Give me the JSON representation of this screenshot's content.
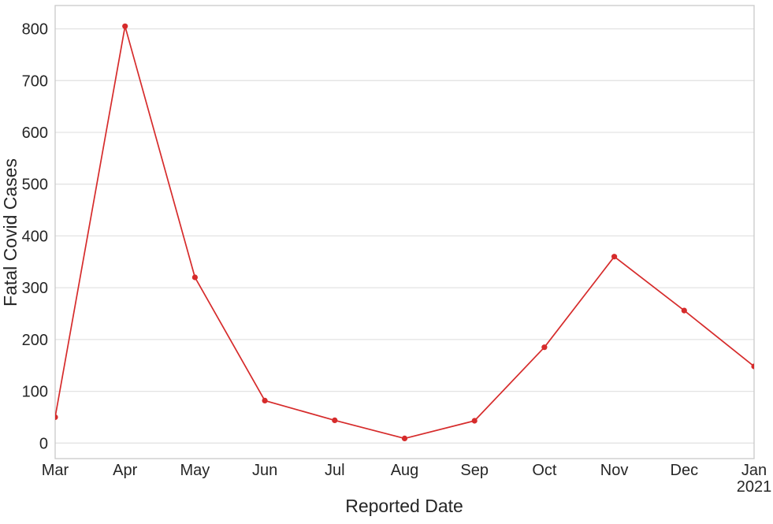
{
  "chart_data": {
    "type": "line",
    "title": "",
    "xlabel": "Reported Date",
    "ylabel": "Fatal Covid Cases",
    "categories": [
      "Mar",
      "Apr",
      "May",
      "Jun",
      "Jul",
      "Aug",
      "Sep",
      "Oct",
      "Nov",
      "Dec",
      "Jan"
    ],
    "x_tick_labels": [
      "Mar",
      "Apr",
      "May",
      "Jun",
      "Jul",
      "Aug",
      "Sep",
      "Oct",
      "Nov",
      "Dec",
      "Jan\n2021"
    ],
    "series": [
      {
        "name": "Fatal Covid Cases",
        "values": [
          50,
          805,
          320,
          82,
          44,
          9,
          43,
          185,
          360,
          256,
          148
        ]
      }
    ],
    "yticks": [
      0,
      100,
      200,
      300,
      400,
      500,
      600,
      700,
      800
    ],
    "ylim": [
      -30,
      845
    ],
    "grid": "horizontal",
    "legend": "none",
    "line_color": "#d62b2b",
    "marker": "circle",
    "marker_color": "#d62b2b",
    "grid_color": "#e3e3e3",
    "spine_color": "#c9c9c9",
    "text_color": "#262626"
  }
}
